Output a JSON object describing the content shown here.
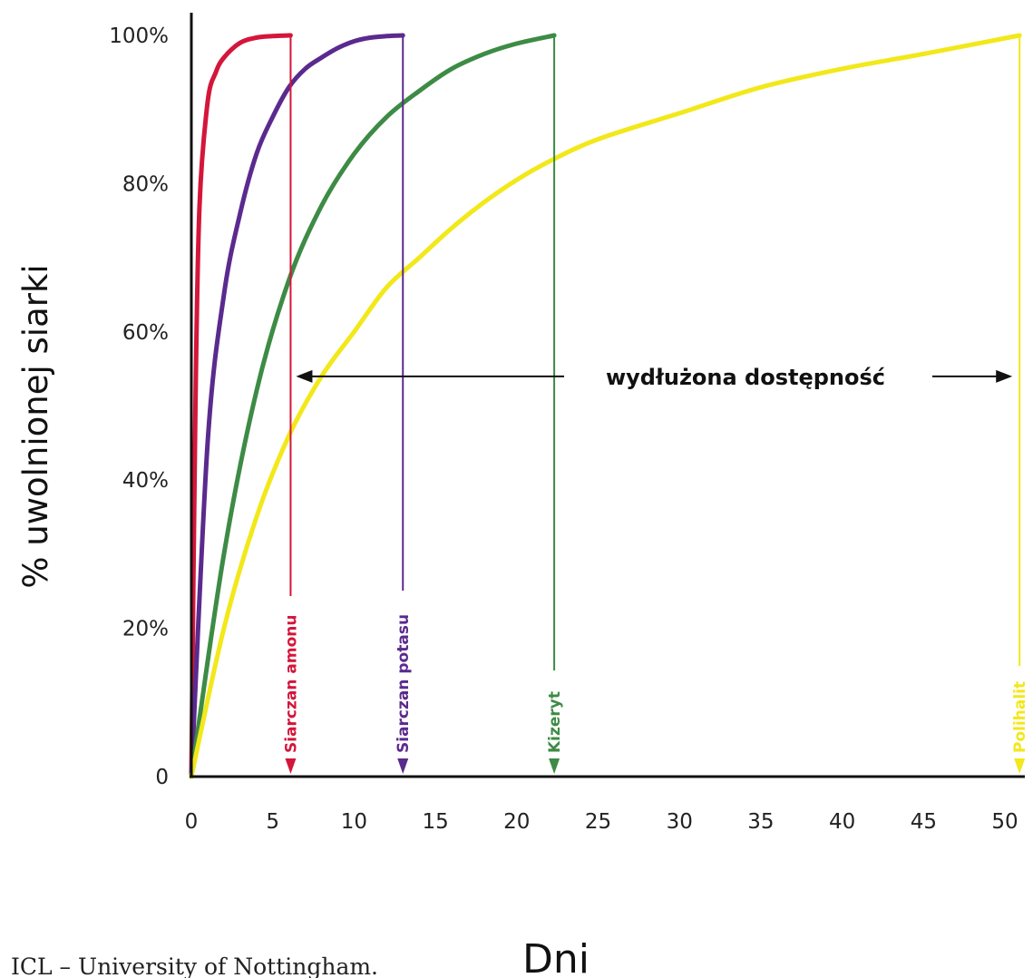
{
  "chart_data": {
    "type": "line",
    "ylabel": "% uwolnionej siarki",
    "xlabel": "Dni",
    "xlim": [
      0,
      51
    ],
    "ylim": [
      0,
      100
    ],
    "x_ticks": [
      0,
      5,
      10,
      15,
      20,
      25,
      30,
      35,
      40,
      45,
      50
    ],
    "y_ticks": [
      {
        "value": 0,
        "label": "0"
      },
      {
        "value": 20,
        "label": "20%"
      },
      {
        "value": 40,
        "label": "40%"
      },
      {
        "value": 60,
        "label": "60%"
      },
      {
        "value": 80,
        "label": "80%"
      },
      {
        "value": 100,
        "label": "100%"
      }
    ],
    "series": [
      {
        "name": "Siarczan amonu",
        "color": "#d4163a",
        "end_day": 6.1,
        "points": [
          [
            0,
            0
          ],
          [
            0.25,
            50
          ],
          [
            0.5,
            77
          ],
          [
            1,
            91
          ],
          [
            1.5,
            95
          ],
          [
            2,
            97
          ],
          [
            3,
            99
          ],
          [
            4,
            99.7
          ],
          [
            5,
            99.9
          ],
          [
            6.1,
            100
          ]
        ]
      },
      {
        "name": "Siarczan potasu",
        "color": "#5b2a8e",
        "end_day": 13.0,
        "points": [
          [
            0,
            0
          ],
          [
            1,
            45
          ],
          [
            2,
            65
          ],
          [
            3,
            76
          ],
          [
            4,
            84
          ],
          [
            5,
            89
          ],
          [
            6,
            93
          ],
          [
            7,
            95.5
          ],
          [
            8,
            97
          ],
          [
            9,
            98.3
          ],
          [
            10,
            99.2
          ],
          [
            11,
            99.7
          ],
          [
            12,
            99.9
          ],
          [
            13,
            100
          ]
        ]
      },
      {
        "name": "Kizeryt",
        "color": "#3d8b45",
        "end_day": 22.3,
        "points": [
          [
            0,
            0
          ],
          [
            2,
            30
          ],
          [
            4,
            52
          ],
          [
            6,
            67
          ],
          [
            8,
            77
          ],
          [
            10,
            84
          ],
          [
            12,
            89
          ],
          [
            14,
            92.5
          ],
          [
            16,
            95.5
          ],
          [
            18,
            97.5
          ],
          [
            20,
            98.9
          ],
          [
            22.3,
            100
          ]
        ]
      },
      {
        "name": "Polihalit",
        "color": "#f2e81a",
        "end_day": 50.9,
        "points": [
          [
            0,
            0
          ],
          [
            2,
            20
          ],
          [
            4,
            35
          ],
          [
            6,
            46
          ],
          [
            8,
            54
          ],
          [
            10,
            60
          ],
          [
            12,
            66
          ],
          [
            14,
            70
          ],
          [
            16,
            74
          ],
          [
            18,
            77.5
          ],
          [
            20,
            80.5
          ],
          [
            22,
            83
          ],
          [
            25,
            86
          ],
          [
            30,
            89.5
          ],
          [
            35,
            93
          ],
          [
            40,
            95.5
          ],
          [
            45,
            97.5
          ],
          [
            50.9,
            100
          ]
        ]
      }
    ],
    "annotation": {
      "text": "wydłużona dostępność",
      "y": 54,
      "x_from": 6.1,
      "x_to": 50.9
    },
    "grid": false,
    "legend": "vertical labels at each series end line"
  },
  "credit": "ICL – University of Nottingham."
}
